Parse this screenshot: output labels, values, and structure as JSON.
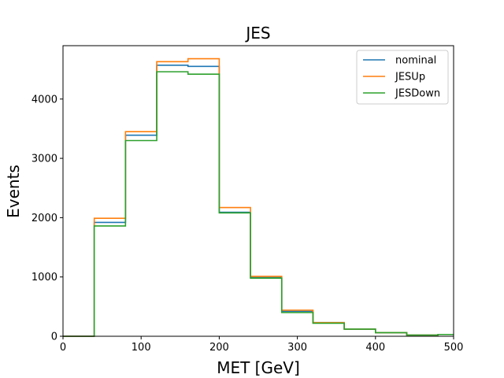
{
  "chart_data": {
    "type": "line",
    "title": "JES",
    "xlabel": "MET [GeV]",
    "ylabel": "Events",
    "xlim": [
      0,
      500
    ],
    "ylim": [
      0,
      4900
    ],
    "xticks": [
      0,
      100,
      200,
      300,
      400,
      500
    ],
    "yticks": [
      0,
      1000,
      2000,
      3000,
      4000
    ],
    "grid": false,
    "legend_position": "top-right",
    "bin_edges": [
      0,
      40,
      80,
      120,
      160,
      200,
      240,
      280,
      320,
      360,
      400,
      440,
      480,
      500
    ],
    "series": [
      {
        "name": "nominal",
        "color": "#1f77b4",
        "values": [
          0,
          1920,
          3390,
          4570,
          4550,
          2090,
          990,
          420,
          230,
          120,
          60,
          20,
          30
        ]
      },
      {
        "name": "JESUp",
        "color": "#ff7f0e",
        "values": [
          0,
          1990,
          3450,
          4630,
          4680,
          2170,
          1010,
          440,
          230,
          120,
          60,
          20,
          30
        ]
      },
      {
        "name": "JESDown",
        "color": "#2ca02c",
        "values": [
          0,
          1860,
          3300,
          4460,
          4420,
          2080,
          980,
          400,
          220,
          120,
          60,
          20,
          30
        ]
      }
    ]
  }
}
